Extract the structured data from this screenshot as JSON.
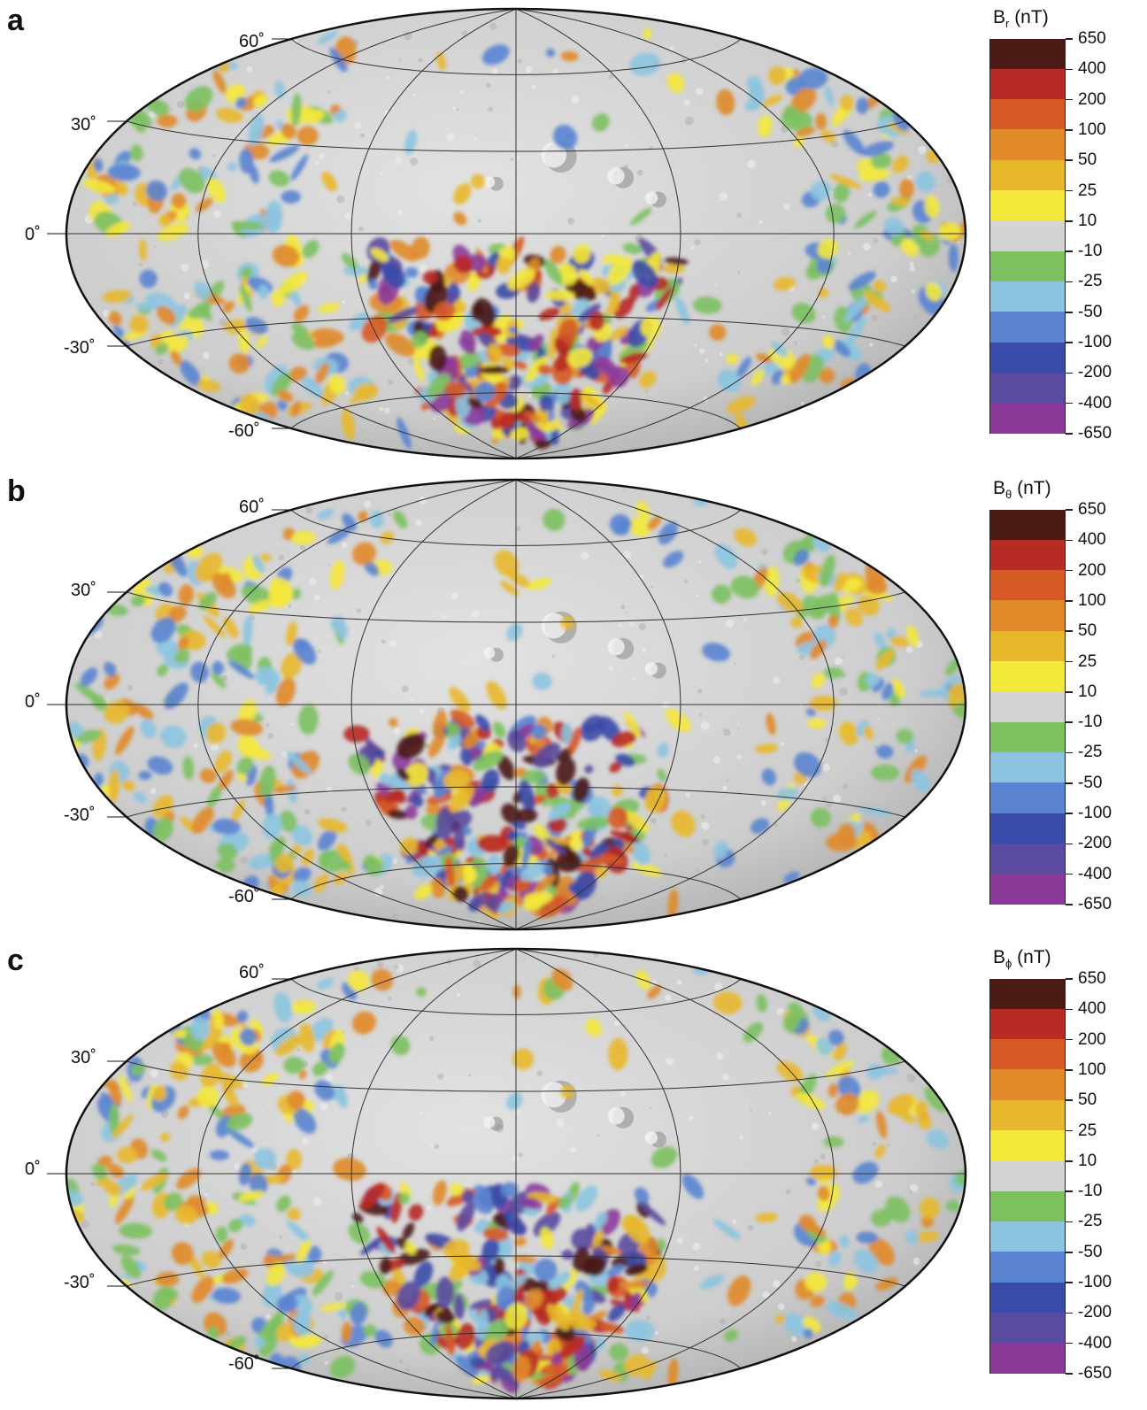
{
  "panels": [
    {
      "letter": "a",
      "legend_symbol": "B",
      "legend_sub": "r",
      "legend_unit": " (nT)"
    },
    {
      "letter": "b",
      "legend_symbol": "B",
      "legend_sub": "θ",
      "legend_unit": " (nT)"
    },
    {
      "letter": "c",
      "legend_symbol": "B",
      "legend_sub": "ϕ",
      "legend_unit": " (nT)"
    }
  ],
  "latitude_labels": [
    "60˚",
    "30˚",
    "0˚",
    "-30˚",
    "-60˚"
  ],
  "legend_levels": [
    "650",
    "400",
    "200",
    "100",
    "50",
    "25",
    "10",
    "-10",
    "-25",
    "-50",
    "-100",
    "-200",
    "-400",
    "-650"
  ],
  "legend_colors": [
    "#4a1a14",
    "#b82a24",
    "#d65a26",
    "#e08a2a",
    "#e8b82c",
    "#f4e83a",
    "#d4d4d4",
    "#7cc060",
    "#8cc4e0",
    "#5a84d0",
    "#3a4aa8",
    "#5a4aa0",
    "#8c3a9a"
  ]
}
